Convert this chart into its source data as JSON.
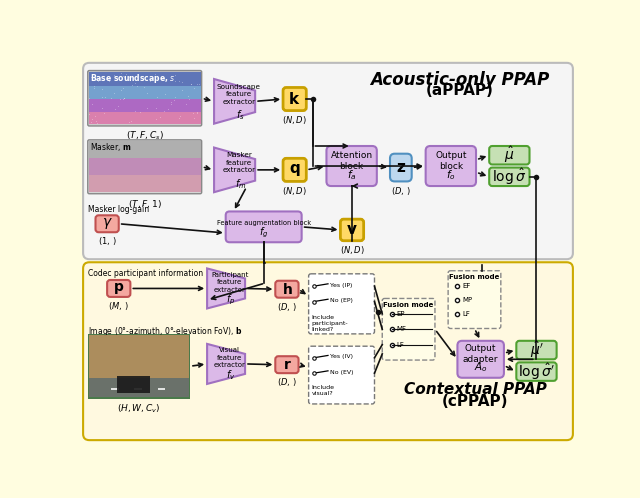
{
  "fig_width": 6.4,
  "fig_height": 4.98,
  "color_purple_fill": "#dbb9e8",
  "color_purple_edge": "#a070c0",
  "color_yellow_fill": "#ffd966",
  "color_yellow_edge": "#c8a000",
  "color_blue_fill": "#bdd7ee",
  "color_blue_edge": "#5090c0",
  "color_green_fill": "#c6e0b4",
  "color_green_edge": "#50a030",
  "color_red_fill": "#f4a8a0",
  "color_red_edge": "#c05050",
  "bg_upper": "#f5f5f5",
  "bg_lower": "#fff9e0",
  "title_upper1": "Acoustic-only PPAP",
  "title_upper2": "(aPPAP)",
  "title_lower1": "Contextual PPAP",
  "title_lower2": "(cPPAP)"
}
